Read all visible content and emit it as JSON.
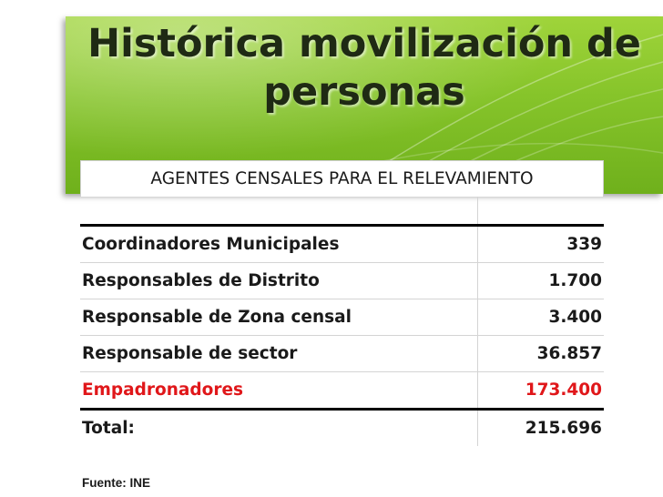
{
  "slide": {
    "title": "Histórica movilización de personas",
    "table": {
      "header": "AGENTES CENSALES PARA EL RELEVAMIENTO",
      "rows": [
        {
          "label": "Coordinadores Municipales",
          "value": "339"
        },
        {
          "label": "Responsables de Distrito",
          "value": "1.700"
        },
        {
          "label": "Responsable de Zona censal",
          "value": "3.400"
        },
        {
          "label": "Responsable de sector",
          "value": "36.857"
        },
        {
          "label": "Empadronadores",
          "value": "173.400",
          "color": "#e0171a"
        }
      ],
      "total": {
        "label": "Total:",
        "value": "215.696"
      }
    },
    "source": "Fuente: INE",
    "colors": {
      "banner": "#86c42a",
      "highlight": "#e0171a"
    }
  }
}
